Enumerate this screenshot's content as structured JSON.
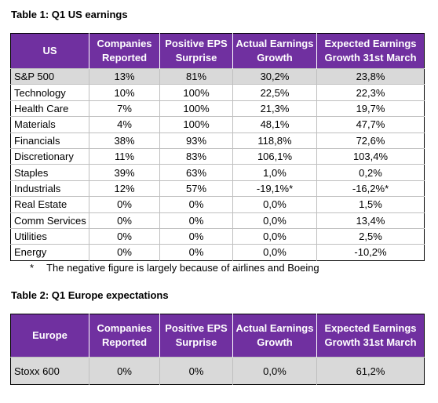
{
  "table1": {
    "title": "Table 1: Q1 US earnings",
    "header": [
      "US",
      "Companies Reported",
      "Positive EPS Surprise",
      "Actual Earnings Growth",
      "Expected Earnings Growth 31st March"
    ],
    "rows": [
      [
        "S&P 500",
        "13%",
        "81%",
        "30,2%",
        "23,8%"
      ],
      [
        "Technology",
        "10%",
        "100%",
        "22,5%",
        "22,3%"
      ],
      [
        "Health Care",
        "7%",
        "100%",
        "21,3%",
        "19,7%"
      ],
      [
        "Materials",
        "4%",
        "100%",
        "48,1%",
        "47,7%"
      ],
      [
        "Financials",
        "38%",
        "93%",
        "118,8%",
        "72,6%"
      ],
      [
        "Discretionary",
        "11%",
        "83%",
        "106,1%",
        "103,4%"
      ],
      [
        "Staples",
        "39%",
        "63%",
        "1,0%",
        "0,2%"
      ],
      [
        "Industrials",
        "12%",
        "57%",
        "-19,1%*",
        "-16,2%*"
      ],
      [
        "Real Estate",
        "0%",
        "0%",
        "0,0%",
        "1,5%"
      ],
      [
        "Comm Services",
        "0%",
        "0%",
        "0,0%",
        "13,4%"
      ],
      [
        "Utilities",
        "0%",
        "0%",
        "0,0%",
        "2,5%"
      ],
      [
        "Energy",
        "0%",
        "0%",
        "0,0%",
        "-10,2%"
      ]
    ],
    "footnote": {
      "marker": "*",
      "text": "The negative figure is largely because of airlines and Boeing"
    }
  },
  "table2": {
    "title": "Table 2: Q1 Europe expectations",
    "header": [
      "Europe",
      "Companies Reported",
      "Positive EPS Surprise",
      "Actual Earnings Growth",
      "Expected Earnings Growth 31st March"
    ],
    "rows": [
      [
        "Stoxx 600",
        "0%",
        "0%",
        "0,0%",
        "61,2%"
      ]
    ]
  }
}
